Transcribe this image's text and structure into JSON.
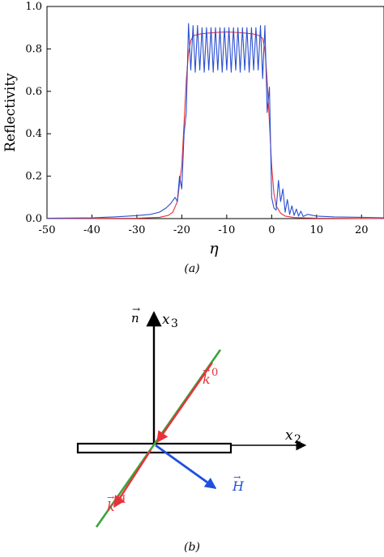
{
  "chart_data": {
    "type": "line",
    "title": "",
    "xlabel": "η",
    "ylabel": "Reflectivity",
    "xlim": [
      -50,
      25
    ],
    "ylim": [
      0,
      1.0
    ],
    "xticks": [
      "-50",
      "-40",
      "-30",
      "-20",
      "-10",
      "0",
      "10",
      "20"
    ],
    "yticks": [
      "0.0",
      "0.2",
      "0.4",
      "0.6",
      "0.8",
      "1.0"
    ],
    "grid": false,
    "legend": "none",
    "series": [
      {
        "color": "#e8313a",
        "x": [
          -50,
          -30,
          -25,
          -23,
          -22,
          -21,
          -20,
          -19.5,
          -19,
          -18.5,
          -18,
          -17.5,
          -17,
          -16,
          -14,
          -12,
          -10,
          -8,
          -6,
          -4,
          -3,
          -2,
          -1.5,
          -1,
          -0.5,
          0,
          0.5,
          1,
          2,
          3,
          5,
          10,
          25
        ],
        "values": [
          0.0,
          0.002,
          0.006,
          0.015,
          0.03,
          0.08,
          0.25,
          0.45,
          0.65,
          0.78,
          0.84,
          0.86,
          0.865,
          0.87,
          0.875,
          0.878,
          0.88,
          0.878,
          0.875,
          0.87,
          0.865,
          0.85,
          0.8,
          0.65,
          0.45,
          0.25,
          0.12,
          0.06,
          0.025,
          0.012,
          0.005,
          0.002,
          0.0
        ]
      },
      {
        "color": "#2b4fd0",
        "x": [
          -50,
          -40,
          -35,
          -30,
          -27,
          -25,
          -23.5,
          -22.5,
          -21.5,
          -21,
          -20.5,
          -20,
          -19.5,
          -19,
          -18.5,
          -18,
          -17.5,
          -17,
          -16.5,
          -16,
          -15.5,
          -15,
          -14.5,
          -14,
          -13.5,
          -13,
          -12.5,
          -12,
          -11.5,
          -11,
          -10.5,
          -10,
          -9.5,
          -9,
          -8.5,
          -8,
          -7.5,
          -7,
          -6.5,
          -6,
          -5.5,
          -5,
          -4.5,
          -4,
          -3.5,
          -3,
          -2.5,
          -2,
          -1.5,
          -1,
          -0.5,
          0,
          0.5,
          1,
          1.5,
          2,
          2.5,
          3,
          3.5,
          4,
          4.5,
          5,
          5.5,
          6,
          6.5,
          7,
          8,
          10,
          14,
          20,
          25
        ],
        "values": [
          0.002,
          0.004,
          0.008,
          0.014,
          0.02,
          0.03,
          0.05,
          0.07,
          0.1,
          0.08,
          0.2,
          0.14,
          0.4,
          0.5,
          0.92,
          0.7,
          0.91,
          0.69,
          0.91,
          0.7,
          0.9,
          0.69,
          0.9,
          0.7,
          0.9,
          0.69,
          0.9,
          0.7,
          0.9,
          0.69,
          0.9,
          0.7,
          0.9,
          0.69,
          0.9,
          0.7,
          0.9,
          0.69,
          0.9,
          0.7,
          0.9,
          0.69,
          0.9,
          0.7,
          0.9,
          0.7,
          0.91,
          0.66,
          0.91,
          0.5,
          0.62,
          0.1,
          0.05,
          0.04,
          0.18,
          0.08,
          0.14,
          0.03,
          0.09,
          0.02,
          0.06,
          0.015,
          0.045,
          0.012,
          0.035,
          0.01,
          0.02,
          0.012,
          0.008,
          0.006,
          0.004
        ]
      }
    ]
  },
  "figure_a": {
    "caption": "(a)"
  },
  "figure_b": {
    "caption": "(b)",
    "labels": {
      "n": "n",
      "x3": "x",
      "x3_sub": "3",
      "x2": "x",
      "x2_sub": "2",
      "k0": "k",
      "k0_sup": "0",
      "kH": "k",
      "kH_sup": "H",
      "H": "H"
    },
    "colors": {
      "normal_axis": "#000000",
      "incident_beam": "#e8313a",
      "diffracted_beam": "#e8313a",
      "line": "#3aa53a",
      "vector_H": "#1f4fe0"
    }
  }
}
